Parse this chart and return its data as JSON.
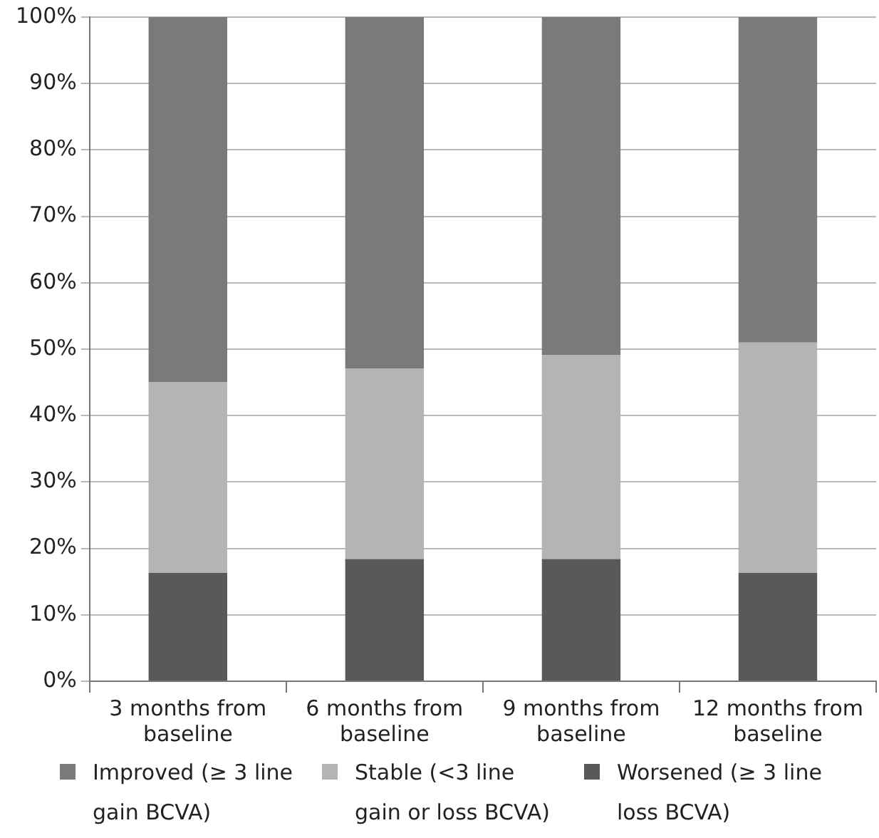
{
  "chart_data": {
    "type": "bar",
    "stacked": true,
    "categories": [
      "3 months from baseline",
      "6 months from baseline",
      "9 months from baseline",
      "12 months from baseline"
    ],
    "series": [
      {
        "name": "Worsened (≥ 3 line loss BCVA)",
        "color": "#595959",
        "values": [
          16.3,
          18.4,
          18.4,
          16.3
        ]
      },
      {
        "name": "Stable (<3 line gain or loss BCVA)",
        "color": "#b4b4b4",
        "values": [
          28.7,
          28.7,
          30.7,
          34.7
        ]
      },
      {
        "name": "Improved (≥ 3 line gain BCVA)",
        "color": "#7a7a7a",
        "values": [
          55,
          52.9,
          50.9,
          49
        ]
      }
    ],
    "ylim": [
      0,
      100
    ],
    "yticks": [
      {
        "value": 0,
        "label": "0%"
      },
      {
        "value": 10,
        "label": "10%"
      },
      {
        "value": 20,
        "label": "20%"
      },
      {
        "value": 30,
        "label": "30%"
      },
      {
        "value": 40,
        "label": "40%"
      },
      {
        "value": 50,
        "label": "50%"
      },
      {
        "value": 60,
        "label": "60%"
      },
      {
        "value": 70,
        "label": "70%"
      },
      {
        "value": 80,
        "label": "80%"
      },
      {
        "value": 90,
        "label": "90%"
      },
      {
        "value": 100,
        "label": "100%"
      }
    ],
    "grid": "y",
    "legend": "bottom"
  }
}
